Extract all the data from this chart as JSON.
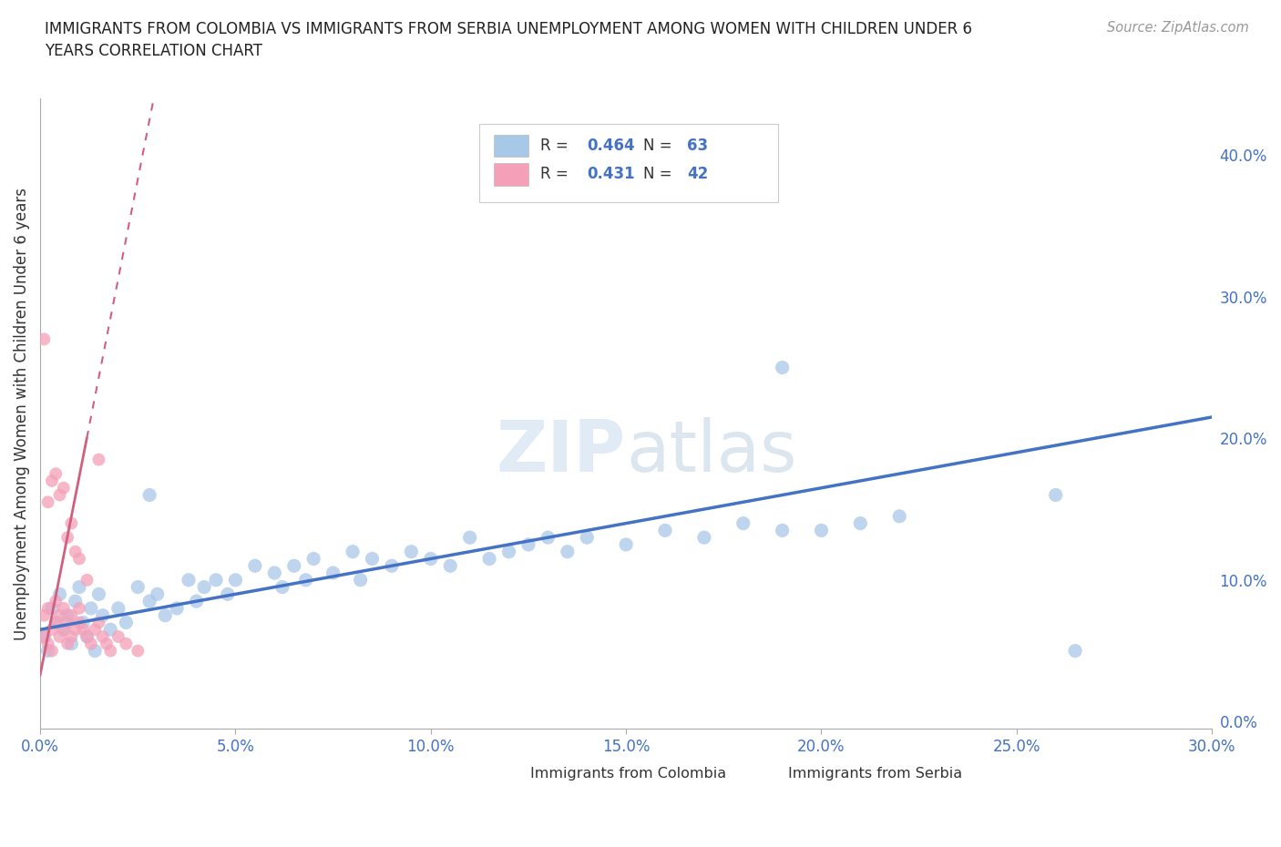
{
  "title": "IMMIGRANTS FROM COLOMBIA VS IMMIGRANTS FROM SERBIA UNEMPLOYMENT AMONG WOMEN WITH CHILDREN UNDER 6\nYEARS CORRELATION CHART",
  "source": "Source: ZipAtlas.com",
  "ylabel": "Unemployment Among Women with Children Under 6 years",
  "xlim": [
    0.0,
    0.3
  ],
  "ylim": [
    -0.005,
    0.44
  ],
  "xticks": [
    0.0,
    0.05,
    0.1,
    0.15,
    0.2,
    0.25,
    0.3
  ],
  "yticks": [
    0.0,
    0.1,
    0.2,
    0.3,
    0.4
  ],
  "watermark_zip": "ZIP",
  "watermark_atlas": "atlas",
  "legend_R1": "0.464",
  "legend_N1": "63",
  "legend_R2": "0.431",
  "legend_N2": "42",
  "color_colombia": "#a8c8e8",
  "color_serbia": "#f4a0b8",
  "color_regression_colombia": "#4472c4",
  "color_regression_serbia": "#d06080",
  "color_text_blue": "#4472c4",
  "color_axis_tick": "#999999",
  "color_grid": "#dddddd",
  "colombia_x": [
    0.001,
    0.002,
    0.003,
    0.004,
    0.005,
    0.006,
    0.007,
    0.008,
    0.009,
    0.01,
    0.011,
    0.012,
    0.013,
    0.014,
    0.015,
    0.016,
    0.018,
    0.02,
    0.022,
    0.025,
    0.028,
    0.03,
    0.032,
    0.035,
    0.038,
    0.04,
    0.042,
    0.045,
    0.048,
    0.05,
    0.055,
    0.06,
    0.062,
    0.065,
    0.068,
    0.07,
    0.075,
    0.08,
    0.082,
    0.085,
    0.09,
    0.095,
    0.1,
    0.105,
    0.11,
    0.115,
    0.12,
    0.125,
    0.13,
    0.135,
    0.14,
    0.15,
    0.16,
    0.17,
    0.18,
    0.19,
    0.2,
    0.21,
    0.22,
    0.26,
    0.028,
    0.265,
    0.19
  ],
  "colombia_y": [
    0.06,
    0.05,
    0.08,
    0.07,
    0.09,
    0.065,
    0.075,
    0.055,
    0.085,
    0.095,
    0.07,
    0.06,
    0.08,
    0.05,
    0.09,
    0.075,
    0.065,
    0.08,
    0.07,
    0.095,
    0.085,
    0.09,
    0.075,
    0.08,
    0.1,
    0.085,
    0.095,
    0.1,
    0.09,
    0.1,
    0.11,
    0.105,
    0.095,
    0.11,
    0.1,
    0.115,
    0.105,
    0.12,
    0.1,
    0.115,
    0.11,
    0.12,
    0.115,
    0.11,
    0.13,
    0.115,
    0.12,
    0.125,
    0.13,
    0.12,
    0.13,
    0.125,
    0.135,
    0.13,
    0.14,
    0.135,
    0.135,
    0.14,
    0.145,
    0.16,
    0.16,
    0.05,
    0.25
  ],
  "serbia_x": [
    0.001,
    0.001,
    0.002,
    0.002,
    0.003,
    0.003,
    0.004,
    0.004,
    0.005,
    0.005,
    0.006,
    0.006,
    0.007,
    0.007,
    0.008,
    0.008,
    0.009,
    0.01,
    0.01,
    0.011,
    0.012,
    0.013,
    0.014,
    0.015,
    0.016,
    0.017,
    0.018,
    0.02,
    0.022,
    0.025,
    0.001,
    0.002,
    0.003,
    0.004,
    0.005,
    0.006,
    0.007,
    0.008,
    0.009,
    0.01,
    0.012,
    0.015
  ],
  "serbia_y": [
    0.06,
    0.075,
    0.055,
    0.08,
    0.065,
    0.05,
    0.07,
    0.085,
    0.06,
    0.075,
    0.065,
    0.08,
    0.055,
    0.07,
    0.06,
    0.075,
    0.065,
    0.07,
    0.08,
    0.065,
    0.06,
    0.055,
    0.065,
    0.07,
    0.06,
    0.055,
    0.05,
    0.06,
    0.055,
    0.05,
    0.27,
    0.155,
    0.17,
    0.175,
    0.16,
    0.165,
    0.13,
    0.14,
    0.12,
    0.115,
    0.1,
    0.185
  ]
}
